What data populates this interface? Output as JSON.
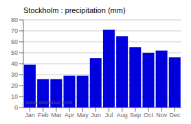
{
  "chart_data": {
    "type": "bar",
    "title": "Stockholm : precipitation (mm)",
    "categories": [
      "Jan",
      "Feb",
      "Mar",
      "Apr",
      "May",
      "Jun",
      "Jul",
      "Aug",
      "Sep",
      "Oct",
      "Nov",
      "Dec"
    ],
    "values": [
      39,
      26,
      26,
      29,
      29,
      45,
      71,
      65,
      55,
      50,
      52,
      46
    ],
    "color": "#0000dd",
    "ylim": [
      0,
      80
    ],
    "yticks": [
      0,
      10,
      20,
      30,
      40,
      50,
      60,
      70,
      80
    ],
    "grid": true,
    "annotation": "www.allmetsat.com"
  }
}
